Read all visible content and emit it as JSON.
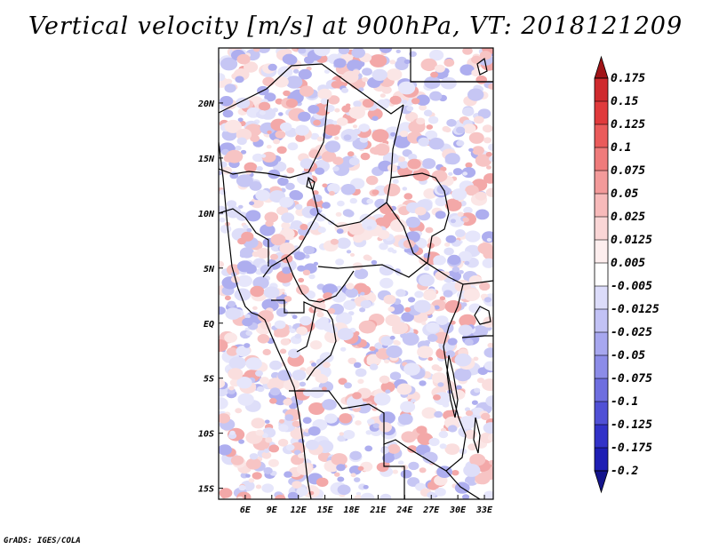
{
  "title": "Vertical velocity [m/s] at 900hPa, VT: 2018121209",
  "credit": "GrADS: IGES/COLA",
  "map": {
    "lon_range": [
      3,
      34
    ],
    "lat_range": [
      -16,
      25
    ],
    "lon_ticks": [
      "6E",
      "9E",
      "12E",
      "15E",
      "18E",
      "21E",
      "24E",
      "27E",
      "30E",
      "33E"
    ],
    "lat_ticks": [
      "20N",
      "15N",
      "10N",
      "5N",
      "EQ",
      "5S",
      "10S",
      "15S"
    ],
    "field_pattern": "mixed small-scale positive (red) and negative (blue) vertical velocity cells"
  },
  "colorbar": {
    "labels": [
      "0.175",
      "0.15",
      "0.125",
      "0.1",
      "0.075",
      "0.05",
      "0.025",
      "0.0125",
      "0.005",
      "-0.005",
      "-0.0125",
      "-0.025",
      "-0.05",
      "-0.075",
      "-0.1",
      "-0.125",
      "-0.175",
      "-0.2"
    ],
    "colors": [
      "#b41e22",
      "#cf2a2e",
      "#e03a3c",
      "#ea5b5b",
      "#ef7b7b",
      "#f39a9a",
      "#f7baba",
      "#fad6d6",
      "#fdeeee",
      "#ffffff",
      "#dcdcfa",
      "#c2c2f5",
      "#a7a7ef",
      "#8c8ce8",
      "#6e6ee0",
      "#5050d6",
      "#3232c8",
      "#1e1eb4",
      "#14148c"
    ],
    "arrow_top_color": "#a01418",
    "arrow_bottom_color": "#14148c"
  }
}
